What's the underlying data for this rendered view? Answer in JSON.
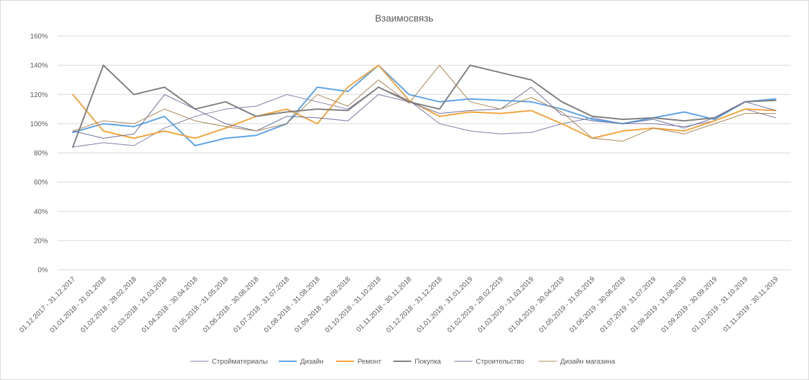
{
  "chart_data": {
    "type": "line",
    "title": "Взаимосвязь",
    "xlabel": "",
    "ylabel": "",
    "ylim": [
      0,
      160
    ],
    "y_ticks": [
      "0%",
      "20%",
      "40%",
      "60%",
      "80%",
      "100%",
      "120%",
      "140%",
      "160%"
    ],
    "grid": true,
    "legend_position": "bottom",
    "categories": [
      "01.12.2017 - 31.12.2017",
      "01.01.2018 - 31.01.2018",
      "01.02.2018 - 28.02.2018",
      "01.03.2018 - 31.03.2018",
      "01.04.2018 - 30.04.2018",
      "01.05.2018 - 31.05.2018",
      "01.06.2018 - 30.06.2018",
      "01.07.2018 - 31.07.2018",
      "01.08.2018 - 31.08.2018",
      "01.09.2018 - 30.09.2018",
      "01.10.2018 - 31.10.2018",
      "01.11.2018 - 30.11.2018",
      "01.12.2018 - 31.12.2018",
      "01.01.2019 - 31.01.2019",
      "01.02.2019 - 28.02.2019",
      "01.03.2019 - 31.03.2019",
      "01.04.2019 - 30.04.2019",
      "01.05.2019 - 31.05.2019",
      "01.06.2019 - 30.06.2019",
      "01.07.2019 - 31.07.2019",
      "01.08.2019 - 31.08.2019",
      "01.09.2019 - 30.09.2019",
      "01.10.2019 - 31.10.2019",
      "01.11.2019 - 30.11.2019"
    ],
    "series": [
      {
        "name": "Стройматериалы",
        "color": "#7f7aa9",
        "width": 1,
        "values": [
          84,
          87,
          85,
          97,
          105,
          110,
          112,
          120,
          115,
          110,
          125,
          116,
          100,
          95,
          93,
          94,
          100,
          104,
          100,
          100,
          98,
          102,
          110,
          104
        ]
      },
      {
        "name": "Дизайн",
        "color": "#5ba3e8",
        "width": 2,
        "values": [
          94,
          100,
          98,
          105,
          85,
          90,
          92,
          100,
          125,
          122,
          140,
          120,
          115,
          117,
          116,
          115,
          110,
          103,
          100,
          104,
          108,
          103,
          115,
          117
        ]
      },
      {
        "name": "Ремонт",
        "color": "#f4a43c",
        "width": 2,
        "values": [
          120,
          95,
          90,
          95,
          90,
          97,
          105,
          110,
          100,
          125,
          140,
          116,
          105,
          108,
          107,
          109,
          100,
          90,
          95,
          97,
          95,
          102,
          110,
          109
        ]
      },
      {
        "name": "Покупка",
        "color": "#7f7f7f",
        "width": 2,
        "values": [
          84,
          140,
          120,
          125,
          110,
          115,
          105,
          108,
          110,
          109,
          125,
          115,
          110,
          140,
          135,
          130,
          115,
          105,
          103,
          104,
          102,
          104,
          115,
          116
        ]
      },
      {
        "name": "Строительство",
        "color": "#6a6f9c",
        "width": 1,
        "values": [
          95,
          90,
          93,
          120,
          110,
          100,
          95,
          105,
          104,
          102,
          120,
          115,
          107,
          109,
          110,
          125,
          106,
          102,
          100,
          103,
          97,
          104,
          115,
          109
        ]
      },
      {
        "name": "Дизайн магазина",
        "color": "#a98354",
        "width": 1,
        "values": [
          95,
          102,
          100,
          110,
          102,
          98,
          95,
          100,
          120,
          112,
          130,
          114,
          140,
          115,
          110,
          118,
          108,
          90,
          88,
          97,
          93,
          100,
          107,
          107
        ]
      }
    ]
  }
}
